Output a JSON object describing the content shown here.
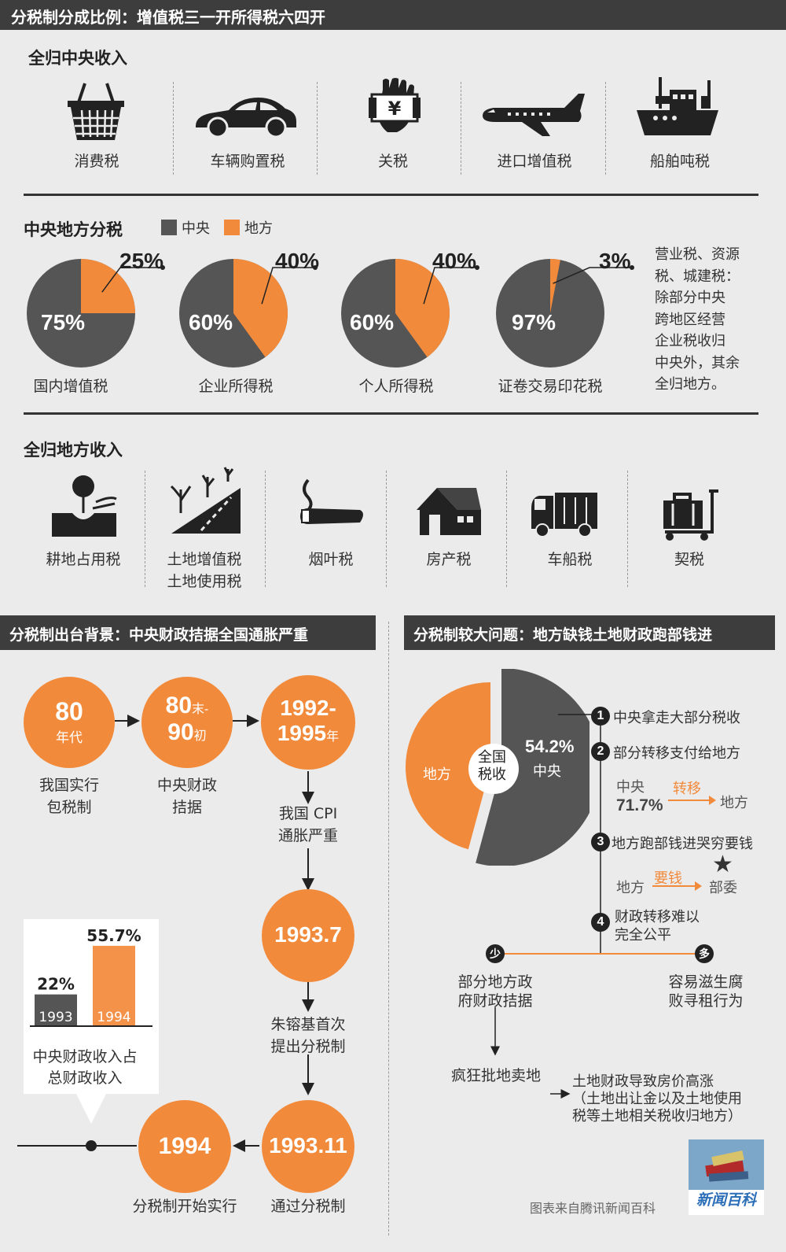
{
  "title": "分税制分成比例：增值税三一开所得税六四开",
  "central": {
    "heading": "全归中央收入",
    "items": [
      {
        "label": "消费税",
        "icon": "shopping-basket-icon"
      },
      {
        "label": "车辆购置税",
        "icon": "car-icon"
      },
      {
        "label": "关税",
        "icon": "customs-hand-yen-icon"
      },
      {
        "label": "进口增值税",
        "icon": "airplane-icon"
      },
      {
        "label": "船舶吨税",
        "icon": "ship-icon"
      }
    ]
  },
  "shared": {
    "heading": "中央地方分税",
    "legend": [
      {
        "label": "中央",
        "color": "#555555"
      },
      {
        "label": "地方",
        "color": "#f28a3b"
      }
    ],
    "pies": [
      {
        "label": "国内增值税",
        "central": "75%",
        "local": "25%",
        "local_value": 25
      },
      {
        "label": "企业所得税",
        "central": "60%",
        "local": "40%",
        "local_value": 40
      },
      {
        "label": "个人所得税",
        "central": "60%",
        "local": "40%",
        "local_value": 40
      },
      {
        "label": "证卷交易印花税",
        "central": "97%",
        "local": "3%",
        "local_value": 3
      }
    ],
    "note": [
      "营业税、资源",
      "税、城建税：",
      "除部分中央",
      "跨地区经营",
      "企业税收归",
      "中央外，其余",
      "全归地方。"
    ]
  },
  "local": {
    "heading": "全归地方收入",
    "items": [
      {
        "label": "耕地占用税",
        "label2": "",
        "icon": "farmland-plant-icon"
      },
      {
        "label": "土地增值税",
        "label2": "土地使用税",
        "icon": "land-road-trees-icon"
      },
      {
        "label": "烟叶税",
        "label2": "",
        "icon": "cigar-icon"
      },
      {
        "label": "房产税",
        "label2": "",
        "icon": "house-icon"
      },
      {
        "label": "车船税",
        "label2": "",
        "icon": "truck-icon"
      },
      {
        "label": "契税",
        "label2": "",
        "icon": "luggage-cart-icon"
      }
    ]
  },
  "background": {
    "heading": "分税制出台背景：中央财政拮据全国通胀严重",
    "c1": {
      "big": "80",
      "small": "年代",
      "caption1": "我国实行",
      "caption2": "包税制"
    },
    "c2": {
      "big1": "80",
      "small1": "末-",
      "big2": "90",
      "small2": "初",
      "caption1": "中央财政",
      "caption2": "拮据"
    },
    "c3": {
      "big1": "1992-",
      "big2": "1995",
      "small": "年",
      "caption1": "我国 CPI",
      "caption2": "通胀严重"
    },
    "c4": {
      "big": "1993.7",
      "caption1": "朱镕基首次",
      "caption2": "提出分税制"
    },
    "c5": {
      "big": "1993.11",
      "caption": "通过分税制"
    },
    "c6": {
      "big": "1994",
      "caption": "分税制开始实行"
    },
    "bars": {
      "values": [
        22,
        55.7
      ],
      "labels": [
        "22%",
        "55.7%"
      ],
      "years": [
        "1993",
        "1994"
      ],
      "caption1": "中央财政收入占",
      "caption2": "总财政收入"
    }
  },
  "problem": {
    "heading": "分税制较大问题：地方缺钱土地财政跑部钱进",
    "pie": {
      "center1": "全国",
      "center2": "税收",
      "central_pct": "54.2%",
      "central_label": "中央",
      "local_label": "地方",
      "central_value": 54.2
    },
    "points": [
      {
        "n": "1",
        "text": "中央拿走大部分税收"
      },
      {
        "n": "2",
        "text": "部分转移支付给地方"
      },
      {
        "n": "3",
        "text": "地方跑部钱进哭穷要钱"
      },
      {
        "n": "4",
        "text1": "财政转移难以",
        "text2": "完全公平"
      }
    ],
    "transfer": {
      "from": "中央",
      "pct": "71.7%",
      "arrow": "转移",
      "to": "地方"
    },
    "ask": {
      "from": "地方",
      "arrow": "要钱",
      "to": "部委"
    },
    "less": {
      "badge": "少",
      "text1": "部分地方政",
      "text2": "府财政拮据"
    },
    "more": {
      "badge": "多",
      "text1": "容易滋生腐",
      "text2": "败寻租行为"
    },
    "sell": "疯狂批地卖地",
    "result": [
      "土地财政导致房价高涨",
      "（土地出让金以及土地使用",
      "税等土地相关税收归地方）"
    ]
  },
  "source": "图表来自腾讯新闻百科",
  "logo_text": "新闻百科"
}
